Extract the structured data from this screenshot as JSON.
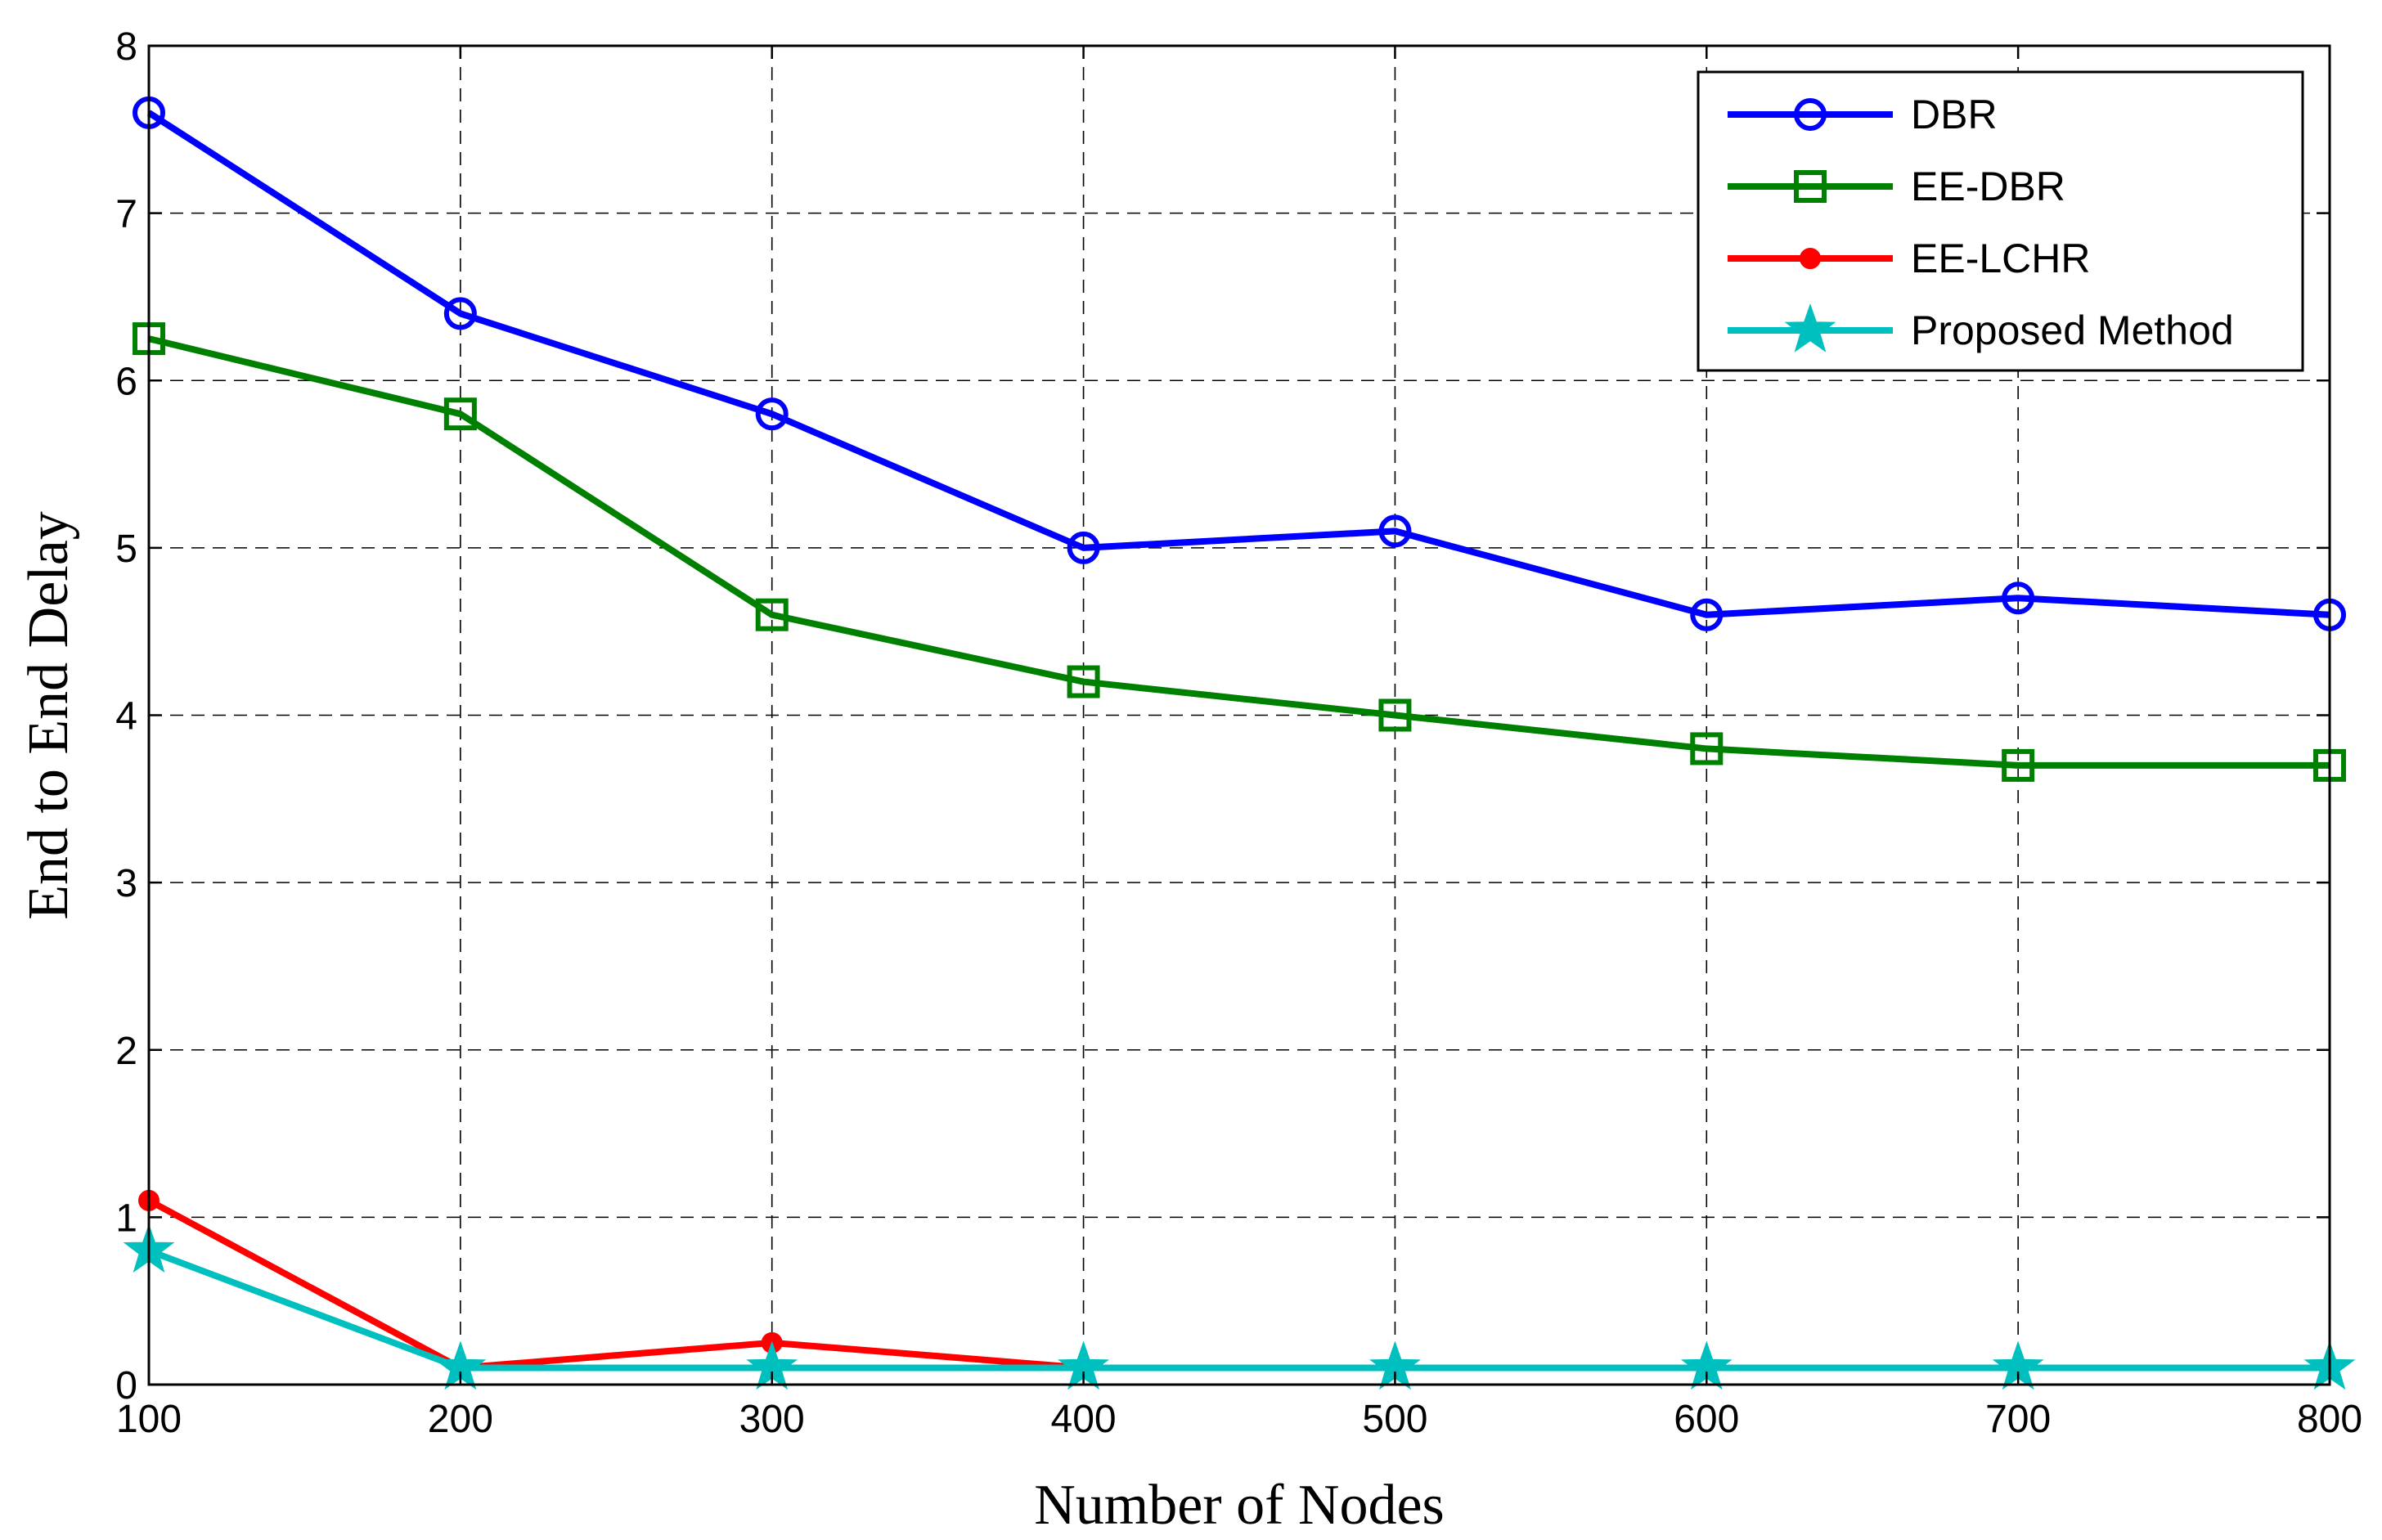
{
  "chart_data": {
    "type": "line",
    "title": "",
    "xlabel": "Number of Nodes",
    "ylabel": "End to End Delay",
    "x": [
      100,
      200,
      300,
      400,
      500,
      600,
      700,
      800
    ],
    "xlim": [
      100,
      800
    ],
    "ylim": [
      0,
      8
    ],
    "xticks": [
      "100",
      "200",
      "300",
      "400",
      "500",
      "600",
      "700",
      "800"
    ],
    "yticks": [
      "0",
      "1",
      "2",
      "3",
      "4",
      "5",
      "6",
      "7",
      "8"
    ],
    "grid": true,
    "legend_position": "top-right",
    "series": [
      {
        "name": "DBR",
        "color": "#0000ff",
        "marker": "circle",
        "values": [
          7.6,
          6.4,
          5.8,
          5.0,
          5.1,
          4.6,
          4.7,
          4.6
        ]
      },
      {
        "name": "EE-DBR",
        "color": "#008000",
        "marker": "square",
        "values": [
          6.25,
          5.8,
          4.6,
          4.2,
          4.0,
          3.8,
          3.7,
          3.7
        ]
      },
      {
        "name": "EE-LCHR",
        "color": "#ff0000",
        "marker": "dot",
        "values": [
          1.1,
          0.1,
          0.25,
          0.1,
          0.1,
          0.1,
          0.1,
          0.1
        ]
      },
      {
        "name": "Proposed Method",
        "color": "#00bfbf",
        "marker": "star",
        "values": [
          0.8,
          0.1,
          0.1,
          0.1,
          0.1,
          0.1,
          0.1,
          0.1
        ]
      }
    ]
  }
}
